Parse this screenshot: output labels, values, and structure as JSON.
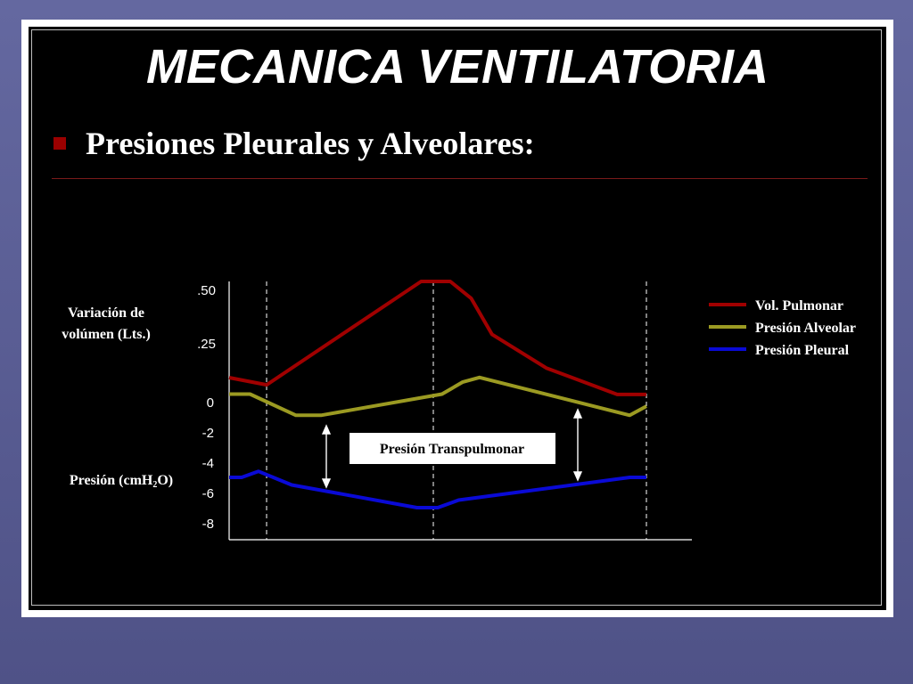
{
  "slide": {
    "title": "MECANICA VENTILATORIA",
    "subtitle": "Presiones Pleurales y Alveolares:"
  },
  "colors": {
    "vol_pulmonar": "#a00000",
    "presion_alveolar": "#9b9a22",
    "presion_pleural": "#0a0ad6",
    "bullet": "#9b0000"
  },
  "chart_data": {
    "type": "line",
    "volume_axis": {
      "label_line1": "Variación de",
      "label_line2": "volúmen (Lts.)",
      "ticks": [
        ".50",
        ".25"
      ]
    },
    "pressure_axis": {
      "label_prefix": "Presión (cmH",
      "label_sub": "2",
      "label_suffix": "O)",
      "ticks": [
        "0",
        "-2",
        "-4",
        "-6",
        "-8"
      ]
    },
    "legend": [
      "Vol. Pulmonar",
      "Presión Alveolar",
      "Presión Pleural"
    ],
    "annotation": "Presión Transpulmonar",
    "series": [
      {
        "name": "Vol. Pulmonar",
        "axis": "volume",
        "points": [
          [
            0.0,
            0.1
          ],
          [
            0.09,
            0.07
          ],
          [
            0.46,
            0.5
          ],
          [
            0.53,
            0.5
          ],
          [
            0.58,
            0.43
          ],
          [
            0.63,
            0.28
          ],
          [
            0.76,
            0.14
          ],
          [
            0.93,
            0.03
          ],
          [
            1.0,
            0.03
          ]
        ]
      },
      {
        "name": "Presión Alveolar",
        "axis": "pressure",
        "points": [
          [
            0.0,
            0.5
          ],
          [
            0.05,
            0.5
          ],
          [
            0.16,
            -0.9
          ],
          [
            0.22,
            -0.9
          ],
          [
            0.51,
            0.5
          ],
          [
            0.56,
            1.3
          ],
          [
            0.6,
            1.6
          ],
          [
            0.96,
            -0.9
          ],
          [
            1.0,
            -0.3
          ]
        ]
      },
      {
        "name": "Presión Pleural",
        "axis": "pressure",
        "points": [
          [
            0.0,
            -5.0
          ],
          [
            0.03,
            -5.0
          ],
          [
            0.07,
            -4.6
          ],
          [
            0.15,
            -5.5
          ],
          [
            0.45,
            -7.0
          ],
          [
            0.5,
            -7.0
          ],
          [
            0.55,
            -6.5
          ],
          [
            0.96,
            -5.0
          ],
          [
            1.0,
            -5.0
          ]
        ]
      }
    ]
  }
}
